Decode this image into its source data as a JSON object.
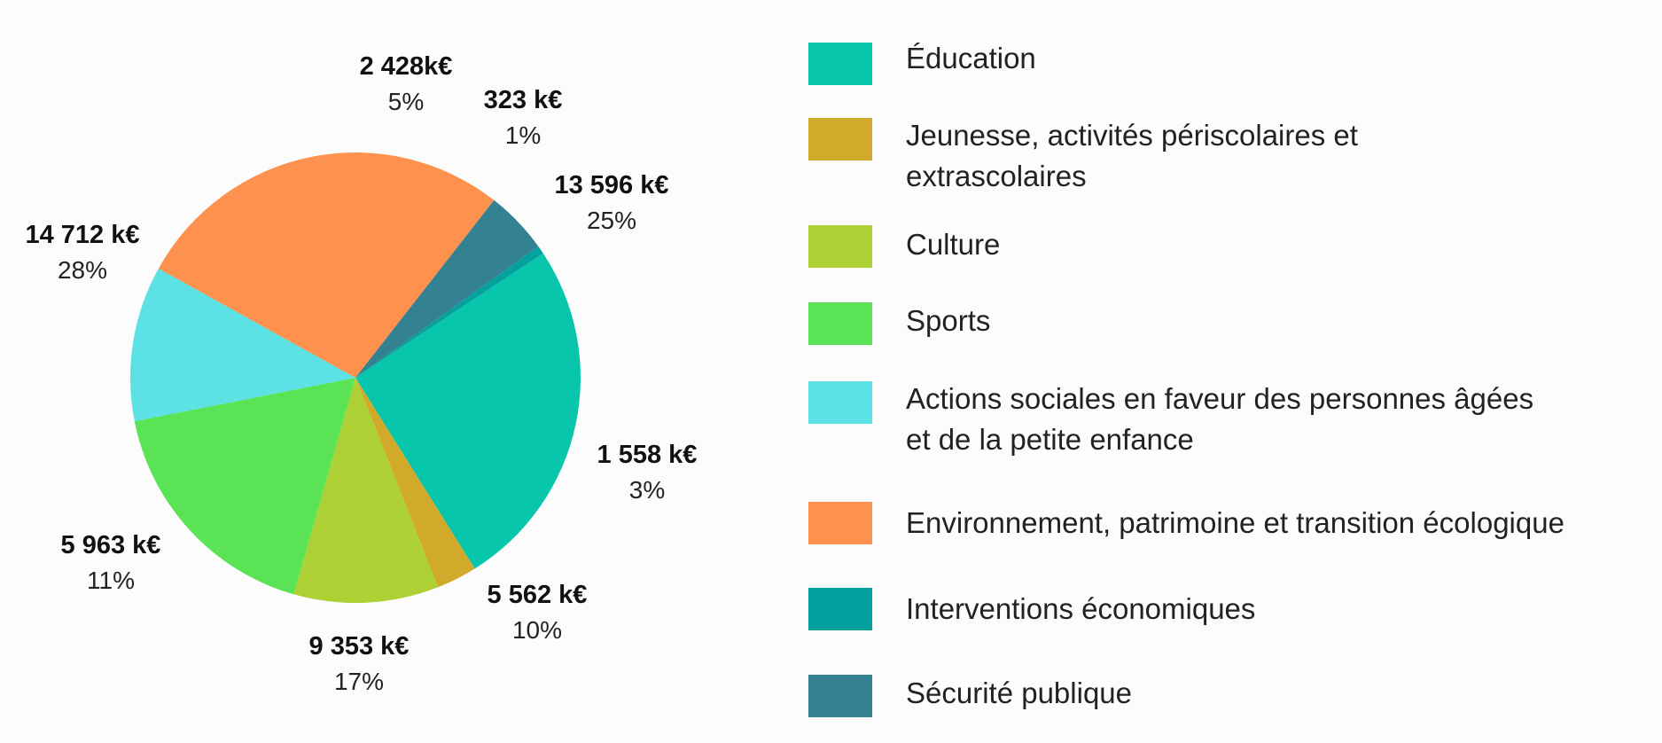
{
  "chart_data": {
    "type": "pie",
    "slices": [
      {
        "name": "Éducation",
        "value": 13596,
        "value_label": "13 596 k€",
        "percent_label": "25%",
        "color": "#07c6ab"
      },
      {
        "name": "Jeunesse, activités périscolaires et extrascolaires",
        "value": 1558,
        "value_label": "1 558 k€",
        "percent_label": "3%",
        "color": "#d1aa2c"
      },
      {
        "name": "Culture",
        "value": 5562,
        "value_label": "5 562 k€",
        "percent_label": "10%",
        "color": "#add134"
      },
      {
        "name": "Sports",
        "value": 9353,
        "value_label": "9 353 k€",
        "percent_label": "17%",
        "color": "#5ae355"
      },
      {
        "name": "Actions sociales en faveur des personnes âgées et de la petite enfance",
        "value": 5963,
        "value_label": "5 963 k€",
        "percent_label": "11%",
        "color": "#5ce1e4"
      },
      {
        "name": "Environnement, patrimoine et transition écologique",
        "value": 14712,
        "value_label": "14 712  k€",
        "percent_label": "28%",
        "color": "#fe914d"
      },
      {
        "name": "Sécurité publique",
        "value": 2428,
        "value_label": "2 428k€",
        "percent_label": "5%",
        "color": "#348191"
      },
      {
        "name": "Interventions économiques",
        "value": 323,
        "value_label": "323 k€",
        "percent_label": "1%",
        "color": "#04a19f"
      }
    ],
    "legend": [
      {
        "label_lines": [
          "Éducation"
        ],
        "color": "#07c6ab"
      },
      {
        "label_lines": [
          "Jeunesse, activités périscolaires et",
          "extrascolaires"
        ],
        "color": "#d1aa2c"
      },
      {
        "label_lines": [
          "Culture"
        ],
        "color": "#add134"
      },
      {
        "label_lines": [
          "Sports"
        ],
        "color": "#5ae355"
      },
      {
        "label_lines": [
          "Actions sociales en faveur des personnes âgées",
          "et de la petite enfance"
        ],
        "color": "#5ce1e4"
      },
      {
        "label_lines": [
          "Environnement, patrimoine et transition écologique"
        ],
        "color": "#fe914d"
      },
      {
        "label_lines": [
          "Interventions économiques"
        ],
        "color": "#04a19f"
      },
      {
        "label_lines": [
          "Sécurité publique"
        ],
        "color": "#348191"
      }
    ],
    "legend_placement": "right"
  }
}
